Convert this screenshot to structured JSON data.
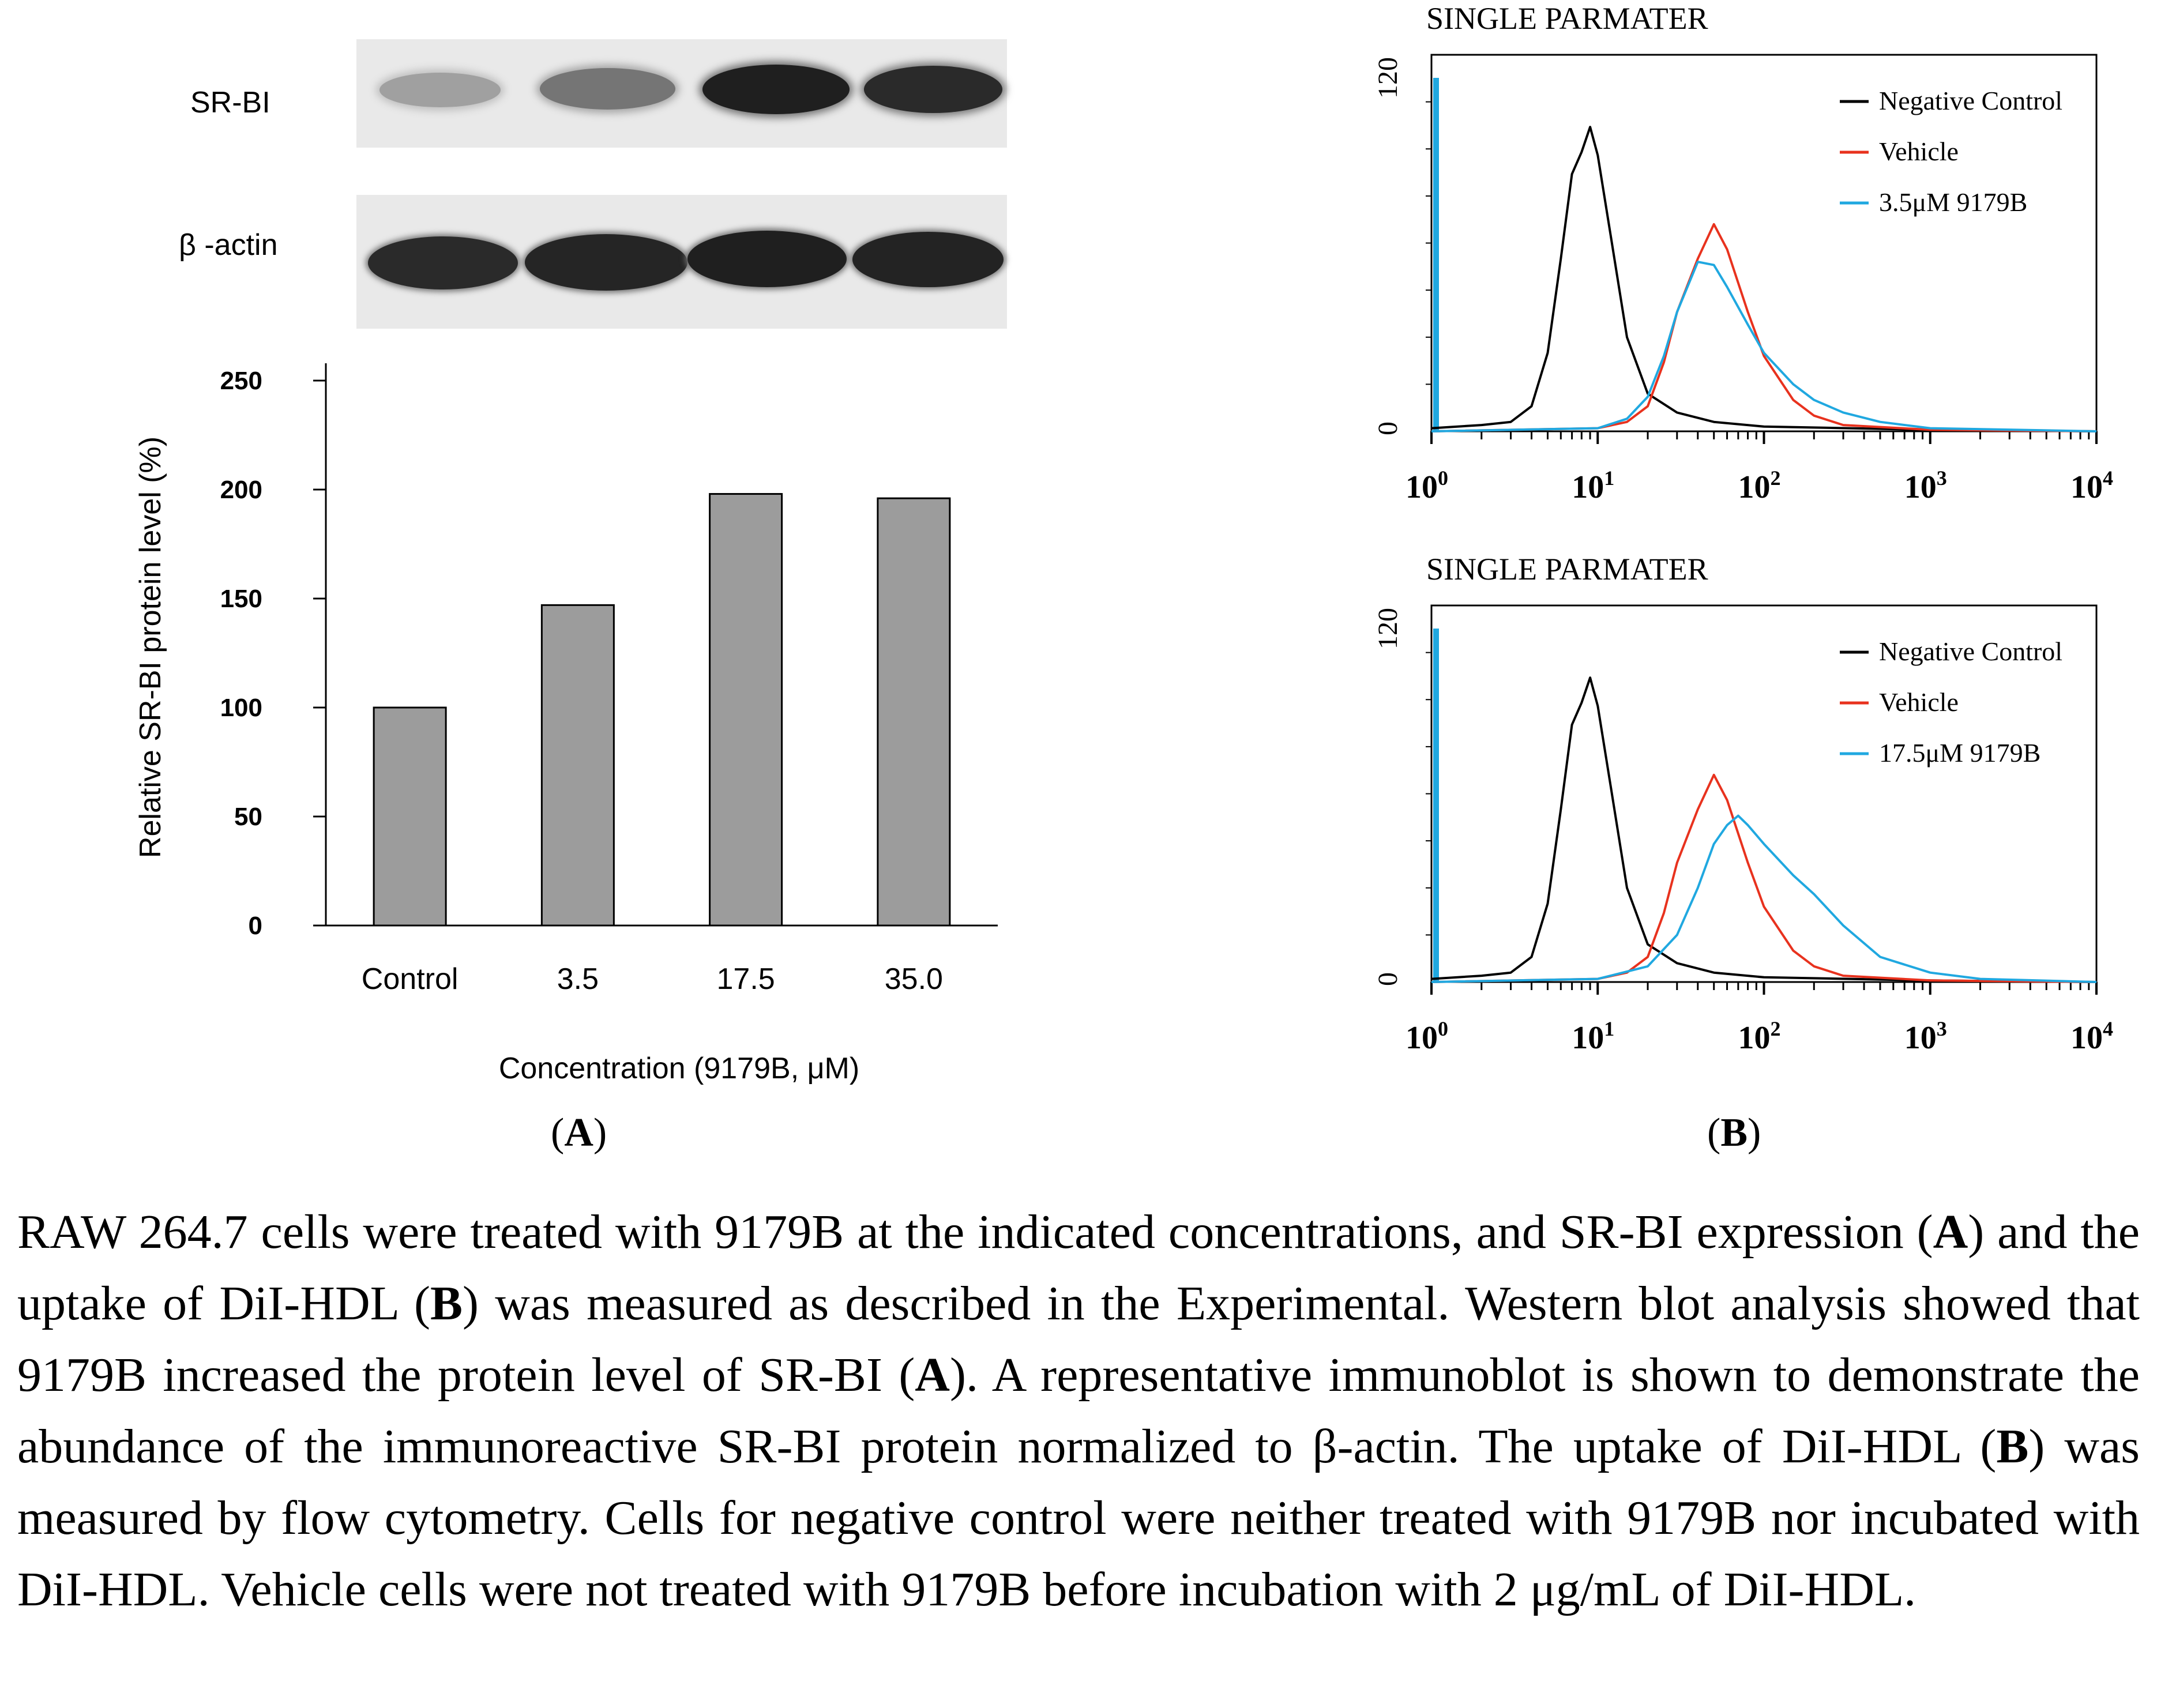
{
  "blot": {
    "labels": [
      "SR-BI",
      "β -actin"
    ],
    "sr_bi_intensity": [
      0.35,
      0.55,
      0.95,
      0.9
    ],
    "actin_intensity": [
      0.9,
      0.92,
      0.95,
      0.93
    ]
  },
  "panel_labels": {
    "a": {
      "open": "(",
      "letter": "A",
      "close": ")"
    },
    "b": {
      "open": "(",
      "letter": "B",
      "close": ")"
    }
  },
  "chart_data": [
    {
      "type": "bar",
      "title": "",
      "categories": [
        "Control",
        "3.5",
        "17.5",
        "35.0"
      ],
      "values": [
        100,
        147,
        198,
        196
      ],
      "xlabel": "Concentration (9179B, μM)",
      "ylabel": "Relative SR-BI protein level (%)",
      "ylim": [
        0,
        250
      ],
      "yticks": [
        "0",
        "50",
        "100",
        "150",
        "200",
        "250"
      ],
      "bar_color": "#9c9c9c"
    },
    {
      "type": "line",
      "title": "SINGLE PARMATER",
      "xscale": "log",
      "xlim": [
        1,
        10000
      ],
      "ylim": [
        0,
        120
      ],
      "xticks": [
        {
          "base": "10",
          "exp": "0"
        },
        {
          "base": "10",
          "exp": "1"
        },
        {
          "base": "10",
          "exp": "2"
        },
        {
          "base": "10",
          "exp": "3"
        },
        {
          "base": "10",
          "exp": "4"
        }
      ],
      "yticks": [
        "0",
        "120"
      ],
      "legend_position": "top-right",
      "series": [
        {
          "name": "Negative Control",
          "color": "#000000",
          "x": [
            1,
            2,
            3,
            4,
            5,
            6,
            7,
            8,
            9,
            10,
            12,
            15,
            20,
            30,
            50,
            100,
            1000,
            10000
          ],
          "y": [
            1,
            2,
            3,
            8,
            25,
            55,
            82,
            89,
            97,
            88,
            62,
            30,
            12,
            6,
            3,
            1.5,
            0.5,
            0
          ]
        },
        {
          "name": "Vehicle",
          "color": "#e8321e",
          "x": [
            1,
            10,
            15,
            20,
            25,
            30,
            40,
            50,
            60,
            80,
            100,
            150,
            200,
            300,
            1000,
            10000
          ],
          "y": [
            0,
            1,
            3,
            8,
            22,
            38,
            55,
            66,
            58,
            38,
            24,
            10,
            5,
            2,
            0.5,
            0
          ]
        },
        {
          "name": "3.5μM 9179B",
          "color": "#20a8e0",
          "x": [
            1,
            10,
            15,
            20,
            25,
            30,
            40,
            50,
            60,
            80,
            100,
            150,
            200,
            300,
            500,
            1000,
            10000
          ],
          "y": [
            0,
            1,
            4,
            11,
            24,
            38,
            54,
            53,
            46,
            34,
            25,
            15,
            10,
            6,
            3,
            1,
            0
          ]
        }
      ]
    },
    {
      "type": "line",
      "title": "SINGLE PARMATER",
      "xscale": "log",
      "xlim": [
        1,
        10000
      ],
      "ylim": [
        0,
        120
      ],
      "xticks": [
        {
          "base": "10",
          "exp": "0"
        },
        {
          "base": "10",
          "exp": "1"
        },
        {
          "base": "10",
          "exp": "2"
        },
        {
          "base": "10",
          "exp": "3"
        },
        {
          "base": "10",
          "exp": "4"
        }
      ],
      "yticks": [
        "0",
        "120"
      ],
      "legend_position": "top-right",
      "series": [
        {
          "name": "Negative Control",
          "color": "#000000",
          "x": [
            1,
            2,
            3,
            4,
            5,
            6,
            7,
            8,
            9,
            10,
            12,
            15,
            20,
            30,
            50,
            100,
            1000,
            10000
          ],
          "y": [
            1,
            2,
            3,
            8,
            25,
            55,
            82,
            89,
            97,
            88,
            62,
            30,
            12,
            6,
            3,
            1.5,
            0.5,
            0
          ]
        },
        {
          "name": "Vehicle",
          "color": "#e8321e",
          "x": [
            1,
            10,
            15,
            20,
            25,
            30,
            40,
            50,
            60,
            80,
            100,
            150,
            200,
            300,
            1000,
            10000
          ],
          "y": [
            0,
            1,
            3,
            8,
            22,
            38,
            55,
            66,
            58,
            38,
            24,
            10,
            5,
            2,
            0.5,
            0
          ]
        },
        {
          "name": "17.5μM 9179B",
          "color": "#20a8e0",
          "x": [
            1,
            10,
            20,
            30,
            40,
            50,
            60,
            70,
            80,
            100,
            150,
            200,
            300,
            500,
            1000,
            2000,
            10000
          ],
          "y": [
            0,
            1,
            5,
            15,
            30,
            44,
            50,
            53,
            50,
            44,
            34,
            28,
            18,
            8,
            3,
            1,
            0
          ]
        }
      ]
    }
  ],
  "caption": {
    "s1": "RAW 264.7 cells were treated with 9179B at the indicated concentrations, and SR-BI expression (",
    "b1": "A",
    "s2": ") and the uptake of DiI-HDL (",
    "b2": "B",
    "s3": ") was measured as described in the Experimental. Western blot analysis showed that 9179B increased the protein level of SR-BI (",
    "b3": "A",
    "s4": "). A representative immunoblot is shown to demonstrate the abundance of the immunoreactive SR-BI protein normalized to β-actin. The uptake of DiI-HDL (",
    "b4": "B",
    "s5": ") was measured by flow cytometry. Cells for negative control were neither treated with 9179B nor incubated with DiI-HDL. Vehicle cells were not treated with 9179B before incubation with 2 μg/mL of DiI-HDL."
  }
}
